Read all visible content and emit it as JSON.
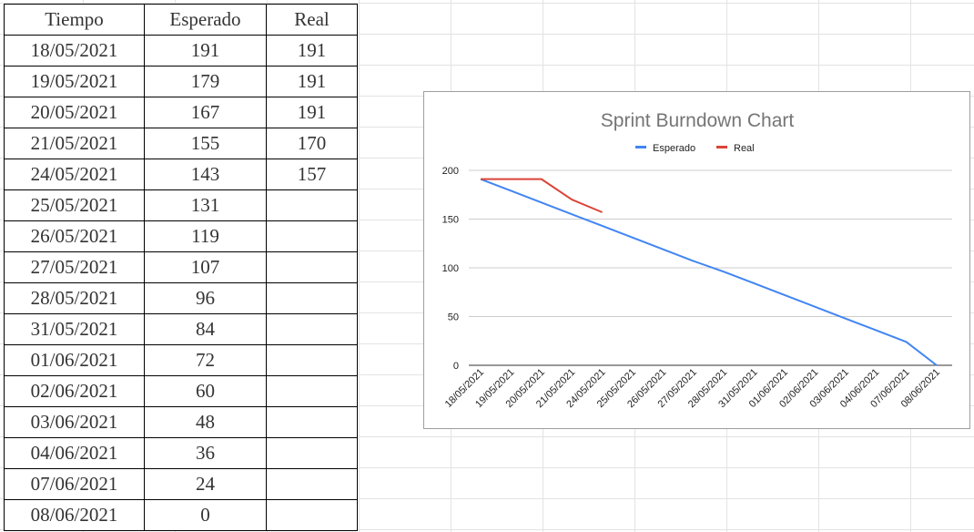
{
  "table": {
    "headers": [
      "Tiempo",
      "Esperado",
      "Real"
    ],
    "rows": [
      [
        "18/05/2021",
        "191",
        "191"
      ],
      [
        "19/05/2021",
        "179",
        "191"
      ],
      [
        "20/05/2021",
        "167",
        "191"
      ],
      [
        "21/05/2021",
        "155",
        "170"
      ],
      [
        "24/05/2021",
        "143",
        "157"
      ],
      [
        "25/05/2021",
        "131",
        ""
      ],
      [
        "26/05/2021",
        "119",
        ""
      ],
      [
        "27/05/2021",
        "107",
        ""
      ],
      [
        "28/05/2021",
        "96",
        ""
      ],
      [
        "31/05/2021",
        "84",
        ""
      ],
      [
        "01/06/2021",
        "72",
        ""
      ],
      [
        "02/06/2021",
        "60",
        ""
      ],
      [
        "03/06/2021",
        "48",
        ""
      ],
      [
        "04/06/2021",
        "36",
        ""
      ],
      [
        "07/06/2021",
        "24",
        ""
      ],
      [
        "08/06/2021",
        "0",
        ""
      ]
    ]
  },
  "chart_data": {
    "type": "line",
    "title": "Sprint Burndown Chart",
    "xlabel": "",
    "ylabel": "",
    "x": [
      "18/05/2021",
      "19/05/2021",
      "20/05/2021",
      "21/05/2021",
      "24/05/2021",
      "25/05/2021",
      "26/05/2021",
      "27/05/2021",
      "28/05/2021",
      "31/05/2021",
      "01/06/2021",
      "02/06/2021",
      "03/06/2021",
      "04/06/2021",
      "07/06/2021",
      "08/06/2021"
    ],
    "series": [
      {
        "name": "Esperado",
        "color": "#4285f4",
        "values": [
          191,
          179,
          167,
          155,
          143,
          131,
          119,
          107,
          96,
          84,
          72,
          60,
          48,
          36,
          24,
          0
        ]
      },
      {
        "name": "Real",
        "color": "#db4437",
        "values": [
          191,
          191,
          191,
          170,
          157,
          null,
          null,
          null,
          null,
          null,
          null,
          null,
          null,
          null,
          null,
          null
        ]
      }
    ],
    "ylim": [
      0,
      200
    ],
    "yticks": [
      0,
      50,
      100,
      150,
      200
    ],
    "grid": true,
    "legend": "top"
  }
}
